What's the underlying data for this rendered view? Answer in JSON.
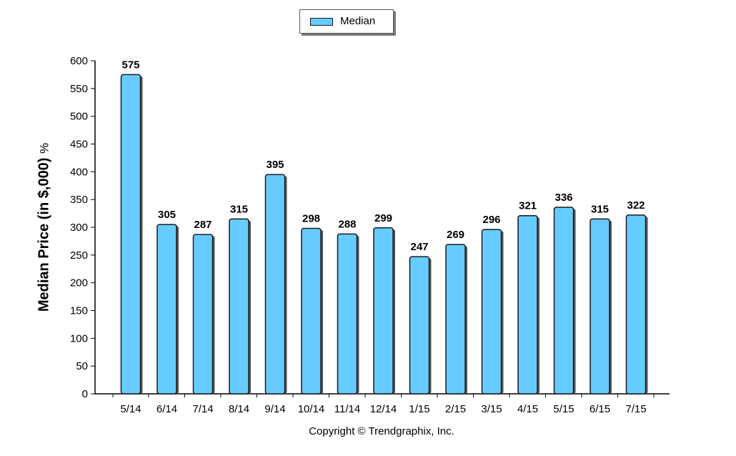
{
  "legend": {
    "label": "Median"
  },
  "copyright": "Copyright © Trendgraphix, Inc.",
  "chart_data": {
    "type": "bar",
    "ylabel": "Median Price (in $,000)",
    "ylabel_unit": "%",
    "xlabel": "",
    "ylim": [
      0,
      600
    ],
    "yticks": [
      0,
      50,
      100,
      150,
      200,
      250,
      300,
      350,
      400,
      450,
      500,
      550,
      600
    ],
    "categories": [
      "5/14",
      "6/14",
      "7/14",
      "8/14",
      "9/14",
      "10/14",
      "11/14",
      "12/14",
      "1/15",
      "2/15",
      "3/15",
      "4/15",
      "5/15",
      "6/15",
      "7/15"
    ],
    "series": [
      {
        "name": "Median",
        "values": [
          575,
          305,
          287,
          315,
          395,
          298,
          288,
          299,
          247,
          269,
          296,
          321,
          336,
          315,
          322
        ]
      }
    ],
    "data_labels": true,
    "grid": false,
    "legend_position": "top-center",
    "colors": {
      "bar_fill": "#66ccff",
      "bar_stroke": "#1a1a1a",
      "bar_shadow": "#555555"
    }
  }
}
